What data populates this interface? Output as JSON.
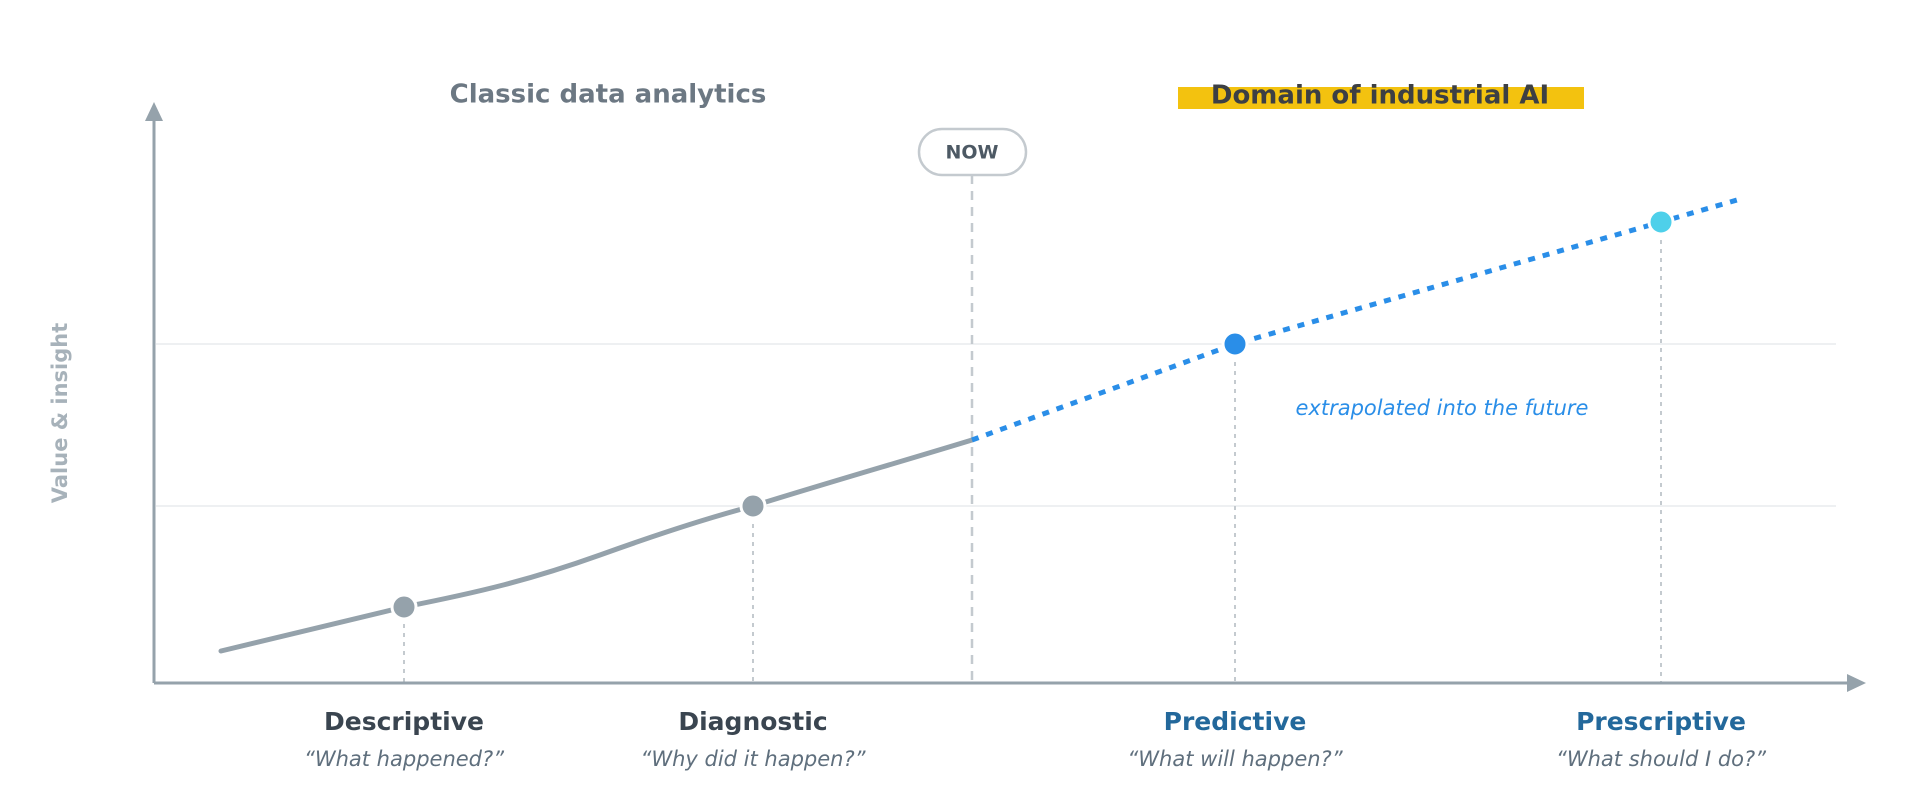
{
  "header": {
    "left_title": "Classic data analytics",
    "right_title": "Domain of industrial AI"
  },
  "marker": "NOW",
  "y_axis_label": "Value & insight",
  "annotation": "extrapolated into the future",
  "stages": [
    {
      "label": "Descriptive",
      "question": "“What happened?”"
    },
    {
      "label": "Diagnostic",
      "question": "“Why did it happen?”"
    },
    {
      "label": "Predictive",
      "question": "“What will happen?”"
    },
    {
      "label": "Prescriptive",
      "question": "“What should I do?”"
    }
  ]
}
